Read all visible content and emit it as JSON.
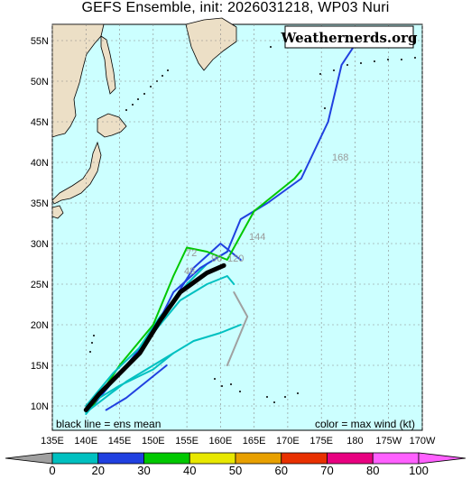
{
  "title": "GEFS Ensemble, init: 2026031218, WP03 Nuri",
  "watermark": "Weathernerds.org",
  "footer_left": "black line = ens mean",
  "footer_right": "color = max wind (kt)",
  "lat_labels": [
    "55N",
    "50N",
    "45N",
    "40N",
    "35N",
    "30N",
    "25N",
    "20N",
    "15N",
    "10N"
  ],
  "lon_labels": [
    "135E",
    "140E",
    "145E",
    "150E",
    "155E",
    "160E",
    "165E",
    "170E",
    "175E",
    "180",
    "175W",
    "170W"
  ],
  "forecast_hour_labels": [
    "72",
    "96",
    "120",
    "144",
    "48",
    "168"
  ],
  "colorbar": {
    "ticks": [
      "0",
      "20",
      "30",
      "40",
      "50",
      "60",
      "70",
      "80",
      "100"
    ],
    "colors": [
      "#a0a0a0",
      "#00c0c0",
      "#2040e0",
      "#00c800",
      "#e8e800",
      "#e8a000",
      "#e83000",
      "#e80080",
      "#ff60ff"
    ]
  },
  "colors": {
    "ocean": "#ccffff",
    "land": "#ecdfc6",
    "grid": "#888888",
    "mean_track": "#000000"
  },
  "chart_data": {
    "type": "map",
    "lon_range": [
      135,
      190
    ],
    "lat_range": [
      7,
      57
    ],
    "mean_track": [
      [
        140,
        9.5
      ],
      [
        142,
        11.5
      ],
      [
        145,
        14
      ],
      [
        148,
        16.5
      ],
      [
        151,
        20.5
      ],
      [
        154,
        24
      ],
      [
        156,
        25.2
      ],
      [
        158,
        26.4
      ],
      [
        160.5,
        27.3
      ]
    ],
    "members": [
      {
        "wind": "cyan",
        "points": [
          [
            140,
            9
          ],
          [
            143,
            12
          ],
          [
            147,
            16
          ],
          [
            151,
            21
          ],
          [
            155,
            25
          ],
          [
            158,
            27.5
          ],
          [
            161,
            29
          ]
        ]
      },
      {
        "wind": "blue",
        "points": [
          [
            140,
            9.5
          ],
          [
            144,
            13
          ],
          [
            149,
            18
          ],
          [
            153,
            23
          ],
          [
            156,
            27
          ],
          [
            160,
            30
          ],
          [
            163,
            28
          ]
        ]
      },
      {
        "wind": "blue",
        "points": [
          [
            141,
            10
          ],
          [
            145,
            14
          ],
          [
            150,
            19
          ],
          [
            153,
            24
          ],
          [
            157,
            27
          ],
          [
            161,
            29
          ],
          [
            163,
            33
          ],
          [
            167,
            35
          ],
          [
            172,
            38
          ],
          [
            176,
            45
          ],
          [
            178,
            52
          ],
          [
            180,
            54.5
          ]
        ]
      },
      {
        "wind": "green",
        "points": [
          [
            141,
            10
          ],
          [
            145,
            15
          ],
          [
            150,
            20
          ],
          [
            153,
            26
          ],
          [
            155,
            29.5
          ],
          [
            158,
            29
          ],
          [
            161,
            28
          ],
          [
            163,
            31
          ],
          [
            165,
            34
          ],
          [
            168,
            36
          ],
          [
            171,
            38
          ],
          [
            172,
            39
          ]
        ]
      },
      {
        "wind": "cyan",
        "points": [
          [
            140,
            10
          ],
          [
            144,
            14
          ],
          [
            149,
            18
          ],
          [
            154,
            23
          ],
          [
            158,
            25
          ],
          [
            161,
            26
          ],
          [
            162,
            25
          ]
        ]
      },
      {
        "wind": "grey",
        "points": [
          [
            162,
            24
          ],
          [
            163,
            22.5
          ],
          [
            164,
            21
          ],
          [
            163,
            19
          ],
          [
            162,
            17
          ],
          [
            161,
            15
          ]
        ]
      },
      {
        "wind": "cyan",
        "points": [
          [
            140,
            9.2
          ],
          [
            146,
            13
          ],
          [
            152,
            16
          ],
          [
            156,
            18
          ],
          [
            160,
            19
          ],
          [
            163,
            20
          ]
        ]
      },
      {
        "wind": "blue",
        "points": [
          [
            143,
            9.5
          ],
          [
            146,
            11
          ],
          [
            149,
            13
          ],
          [
            152,
            15
          ]
        ]
      },
      {
        "wind": "cyan",
        "points": [
          [
            140,
            10
          ],
          [
            145,
            12.5
          ],
          [
            150,
            14.5
          ],
          [
            153,
            16.5
          ]
        ]
      }
    ]
  }
}
